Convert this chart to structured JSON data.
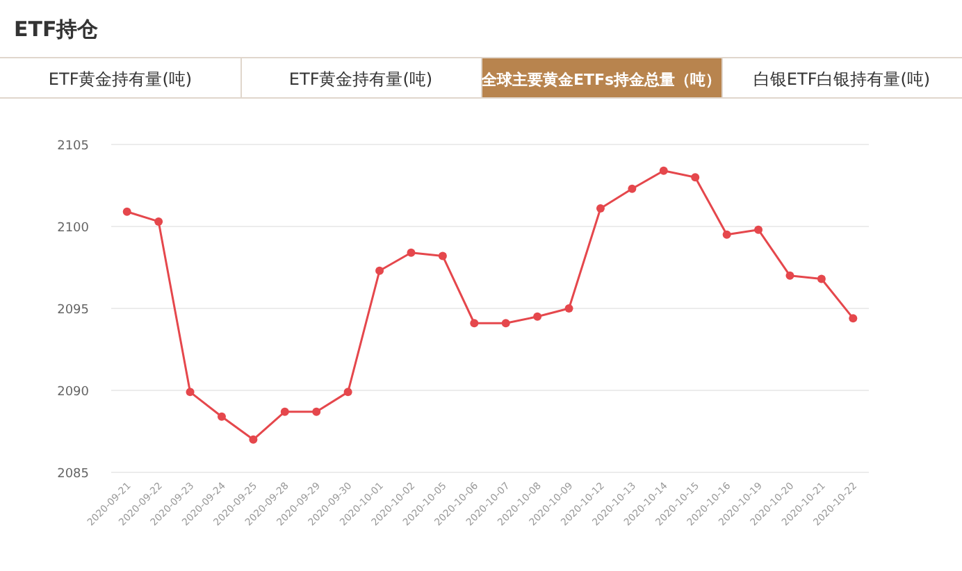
{
  "chart_data": {
    "type": "line",
    "title": "ETF持仓",
    "subtitle": "全球主要黄金ETFs持金总量（吨）",
    "annotations": [
      "ETF黄金持有量(吨)",
      "ETF黄金持有量(吨)",
      "白银ETF白银持有量(吨)"
    ],
    "categories": [
      "2020-09-21",
      "2020-09-22",
      "2020-09-23",
      "2020-09-24",
      "2020-09-25",
      "2020-09-28",
      "2020-09-29",
      "2020-09-30",
      "2020-10-01",
      "2020-10-02",
      "2020-10-05",
      "2020-10-06",
      "2020-10-07",
      "2020-10-08",
      "2020-10-09",
      "2020-10-12",
      "2020-10-13",
      "2020-10-14",
      "2020-10-15",
      "2020-10-16",
      "2020-10-19",
      "2020-10-20",
      "2020-10-21",
      "2020-10-22"
    ],
    "series": [
      {
        "color": "#e5474c",
        "values": [
          2100.9,
          2100.3,
          2089.9,
          2088.4,
          2087.0,
          2088.7,
          2088.7,
          2089.9,
          2097.3,
          2098.4,
          2098.2,
          2094.1,
          2094.1,
          2094.5,
          2095.0,
          2101.1,
          2102.3,
          2103.4,
          2103.0,
          2099.5,
          2099.8,
          2097.0,
          2096.8,
          2094.4
        ]
      }
    ],
    "ylim": [
      2085,
      2105
    ],
    "yticks": [
      2085,
      2090,
      2095,
      2100,
      2105
    ],
    "grid": "y",
    "marker": "circle",
    "line_style": "solid"
  }
}
